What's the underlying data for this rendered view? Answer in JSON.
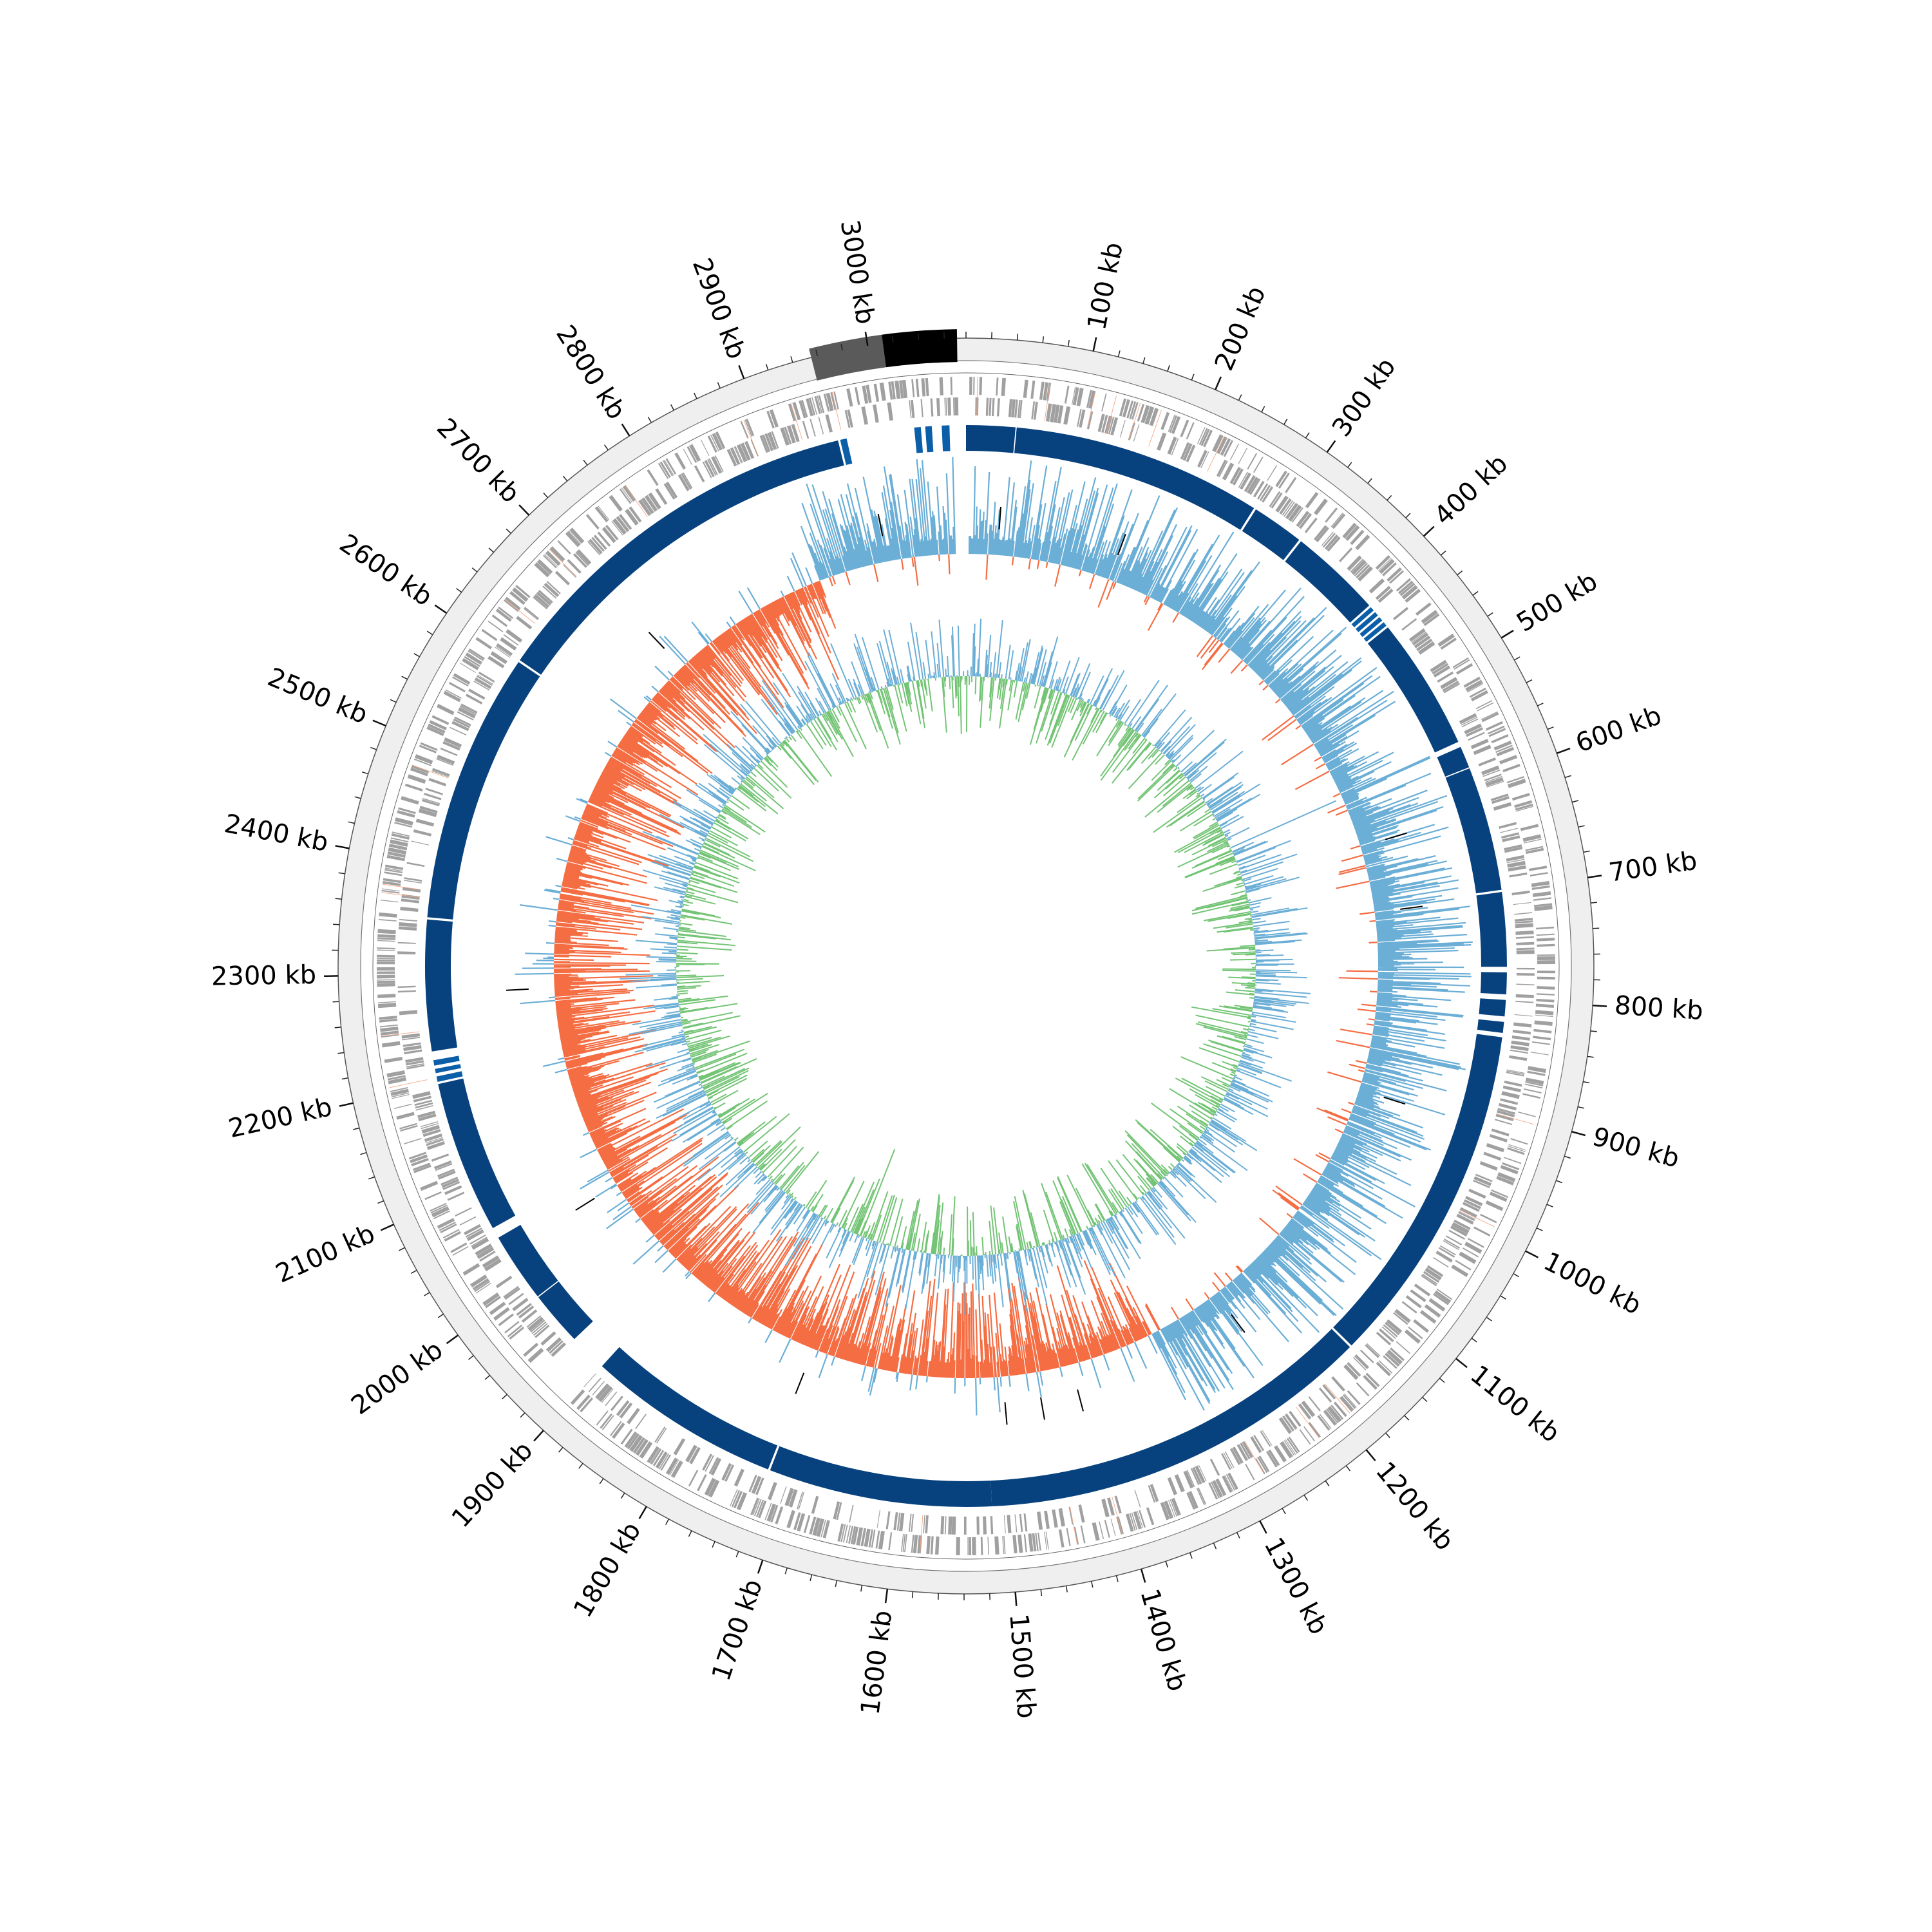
{
  "chart_data": {
    "type": "circular-genome",
    "genome_length_kb": 3077,
    "tick_labels": [
      {
        "pos": 100,
        "label": "100 kb"
      },
      {
        "pos": 200,
        "label": "200 kb"
      },
      {
        "pos": 300,
        "label": "300 kb"
      },
      {
        "pos": 400,
        "label": "400 kb"
      },
      {
        "pos": 500,
        "label": "500 kb"
      },
      {
        "pos": 600,
        "label": "600 kb"
      },
      {
        "pos": 700,
        "label": "700 kb"
      },
      {
        "pos": 800,
        "label": "800 kb"
      },
      {
        "pos": 900,
        "label": "900 kb"
      },
      {
        "pos": 1000,
        "label": "1000 kb"
      },
      {
        "pos": 1100,
        "label": "1100 kb"
      },
      {
        "pos": 1200,
        "label": "1200 kb"
      },
      {
        "pos": 1300,
        "label": "1300 kb"
      },
      {
        "pos": 1400,
        "label": "1400 kb"
      },
      {
        "pos": 1500,
        "label": "1500 kb"
      },
      {
        "pos": 1600,
        "label": "1600 kb"
      },
      {
        "pos": 1700,
        "label": "1700 kb"
      },
      {
        "pos": 1800,
        "label": "1800 kb"
      },
      {
        "pos": 1900,
        "label": "1900 kb"
      },
      {
        "pos": 2000,
        "label": "2000 kb"
      },
      {
        "pos": 2100,
        "label": "2100 kb"
      },
      {
        "pos": 2200,
        "label": "2200 kb"
      },
      {
        "pos": 2300,
        "label": "2300 kb"
      },
      {
        "pos": 2400,
        "label": "2400 kb"
      },
      {
        "pos": 2500,
        "label": "2500 kb"
      },
      {
        "pos": 2600,
        "label": "2600 kb"
      },
      {
        "pos": 2700,
        "label": "2700 kb"
      },
      {
        "pos": 2800,
        "label": "2800 kb"
      },
      {
        "pos": 2900,
        "label": "2900 kb"
      },
      {
        "pos": 3000,
        "label": "3000 kb"
      }
    ],
    "minor_tick_step_kb": 20,
    "outer_segments": [
      {
        "start": 2955,
        "end": 3012,
        "color": "#5a5a5a"
      },
      {
        "start": 3012,
        "end": 3070,
        "color": "#000000"
      }
    ],
    "alignment_blocks": [
      {
        "start": 0,
        "end": 45
      },
      {
        "start": 46,
        "end": 275
      },
      {
        "start": 277,
        "end": 325
      },
      {
        "start": 327,
        "end": 412
      },
      {
        "start": 414,
        "end": 418
      },
      {
        "start": 420,
        "end": 424
      },
      {
        "start": 426,
        "end": 430
      },
      {
        "start": 432,
        "end": 436
      },
      {
        "start": 438,
        "end": 560
      },
      {
        "start": 565,
        "end": 585
      },
      {
        "start": 586,
        "end": 700
      },
      {
        "start": 702,
        "end": 770
      },
      {
        "start": 775,
        "end": 795
      },
      {
        "start": 800,
        "end": 815
      },
      {
        "start": 820,
        "end": 830
      },
      {
        "start": 834,
        "end": 1150
      },
      {
        "start": 1152,
        "end": 1515
      },
      {
        "start": 1515,
        "end": 1720
      },
      {
        "start": 1722,
        "end": 1900
      },
      {
        "start": 1935,
        "end": 1985
      },
      {
        "start": 1986,
        "end": 2050
      },
      {
        "start": 2060,
        "end": 2200
      },
      {
        "start": 2202,
        "end": 2207
      },
      {
        "start": 2210,
        "end": 2214
      },
      {
        "start": 2217,
        "end": 2222
      },
      {
        "start": 2230,
        "end": 2350
      },
      {
        "start": 2352,
        "end": 2600
      },
      {
        "start": 2602,
        "end": 2960
      },
      {
        "start": 2962,
        "end": 2968
      },
      {
        "start": 3030,
        "end": 3036
      },
      {
        "start": 3040,
        "end": 3046
      },
      {
        "start": 3055,
        "end": 3062
      }
    ],
    "gc_skew_sign_regions": [
      {
        "start": 0,
        "end": 1310,
        "sign": "positive"
      },
      {
        "start": 1310,
        "end": 2900,
        "sign": "negative"
      },
      {
        "start": 2900,
        "end": 3077,
        "sign": "positive"
      }
    ],
    "colors": {
      "backbone": "#efefef",
      "genes": "#a0a0a0",
      "rna_genes": "#f4a582",
      "blocks": "#08427e",
      "small_blocks": "#0b5ea8",
      "skew_positive": "#6baed6",
      "skew_negative": "#f46d43",
      "gc_positive": "#6baed6",
      "gc_negative": "#74c476",
      "feature_marks": "#000000"
    }
  }
}
